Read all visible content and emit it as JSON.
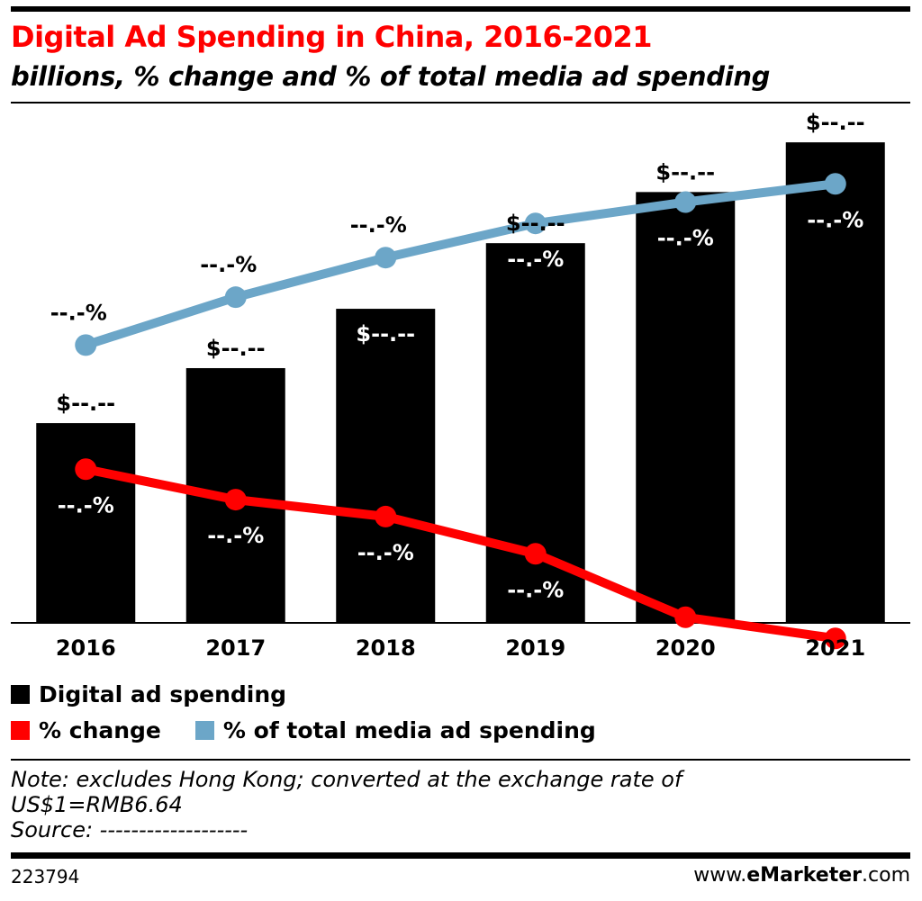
{
  "header": {
    "title": "Digital Ad Spending in China, 2016-2021",
    "subtitle": "billions, % change and % of total media ad spending"
  },
  "chart_data": {
    "type": "bar",
    "categories": [
      "2016",
      "2017",
      "2018",
      "2019",
      "2020",
      "2021"
    ],
    "series": [
      {
        "name": "Digital ad spending",
        "kind": "bar",
        "color": "#000000",
        "values": [
          41.4,
          52.8,
          65.1,
          78.7,
          89.3,
          99.6
        ],
        "labels": [
          "$--.--",
          "$--.--",
          "$--.--",
          "$--.--",
          "$--.--",
          "$--.--"
        ]
      },
      {
        "name": "% change",
        "kind": "line",
        "color": "#ff0000",
        "values": [
          32.1,
          28.5,
          26.5,
          22.1,
          14.6,
          12.1
        ],
        "labels": [
          "--.-%",
          "--.-%",
          "--.-%",
          "--.-%",
          "--.-%",
          "--.-%"
        ]
      },
      {
        "name": "% of total media ad spending",
        "kind": "line",
        "color": "#6ca6c8",
        "values": [
          57.8,
          64.1,
          69.3,
          73.8,
          76.6,
          79.0
        ],
        "labels": [
          "--.-%",
          "--.-%",
          "--.-%",
          "--.-%",
          "--.-%",
          "--.-%"
        ]
      }
    ],
    "grid": false,
    "legend_position": "bottom-left"
  },
  "legend": {
    "bar_label": "Digital ad spending",
    "change_label": "% change",
    "share_label": "% of total media ad spending"
  },
  "footer": {
    "note_line1": "Note: excludes Hong Kong; converted at the exchange rate of",
    "note_line2": "US$1=RMB6.64",
    "source": "Source: -------------------",
    "chart_id": "223794",
    "brand_prefix": "www.",
    "brand_name": "eMarketer",
    "brand_suffix": ".com"
  }
}
